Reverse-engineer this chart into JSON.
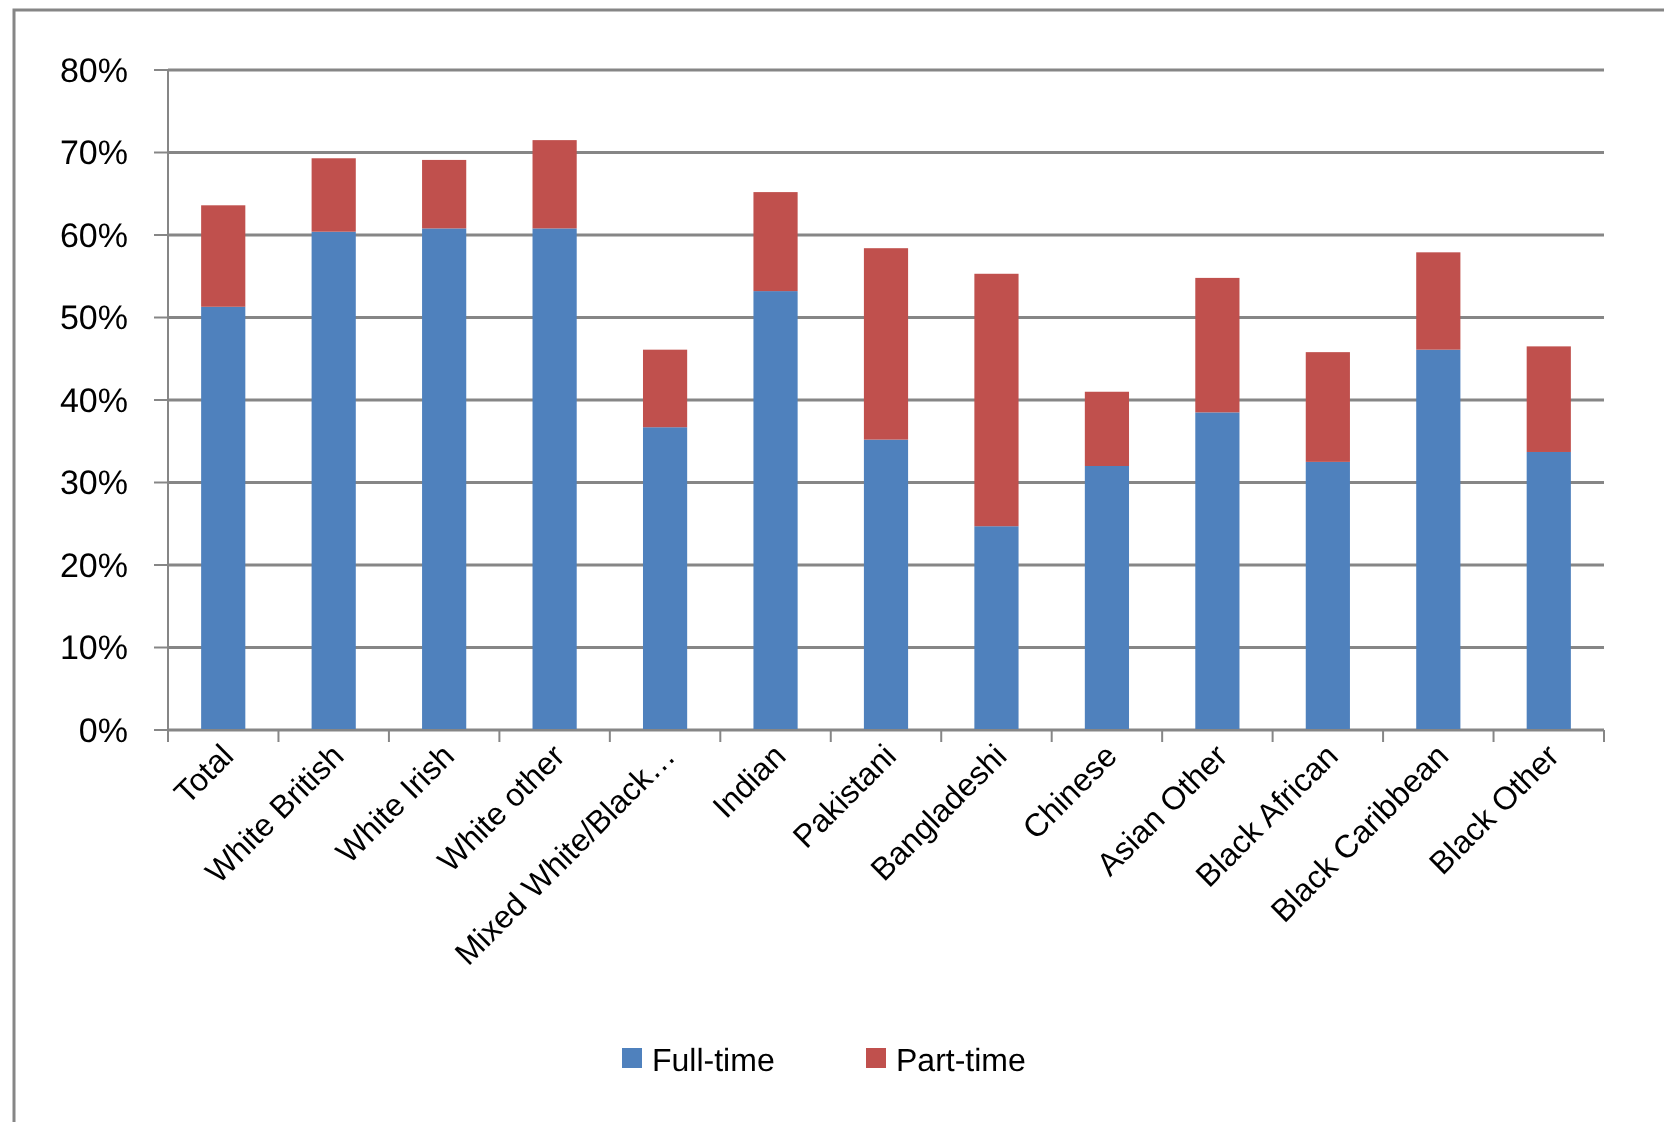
{
  "chart_data": {
    "type": "bar",
    "stacked": true,
    "categories": [
      "Total",
      "White British",
      "White Irish",
      "White other",
      "Mixed White/Black…",
      "Indian",
      "Pakistani",
      "Bangladeshi",
      "Chinese",
      "Asian Other",
      "Black African",
      "Black Caribbean",
      "Black Other"
    ],
    "series": [
      {
        "name": "Full-time",
        "color": "#4f81bd",
        "values": [
          51.3,
          60.4,
          60.8,
          60.8,
          36.7,
          53.2,
          35.2,
          24.7,
          32.0,
          38.5,
          32.5,
          46.1,
          33.7
        ]
      },
      {
        "name": "Part-time",
        "color": "#c0504d",
        "values": [
          12.3,
          8.9,
          8.3,
          10.7,
          9.4,
          12.0,
          23.2,
          30.6,
          9.0,
          16.3,
          13.3,
          11.8,
          12.8
        ]
      }
    ],
    "ylim": [
      0,
      80
    ],
    "yticks": [
      {
        "value": 0,
        "label": "0%"
      },
      {
        "value": 10,
        "label": "10%"
      },
      {
        "value": 20,
        "label": "20%"
      },
      {
        "value": 30,
        "label": "30%"
      },
      {
        "value": 40,
        "label": "40%"
      },
      {
        "value": 50,
        "label": "50%"
      },
      {
        "value": 60,
        "label": "60%"
      },
      {
        "value": 70,
        "label": "70%"
      },
      {
        "value": 80,
        "label": "80%"
      }
    ],
    "grid": "y",
    "legend": "bottom"
  }
}
